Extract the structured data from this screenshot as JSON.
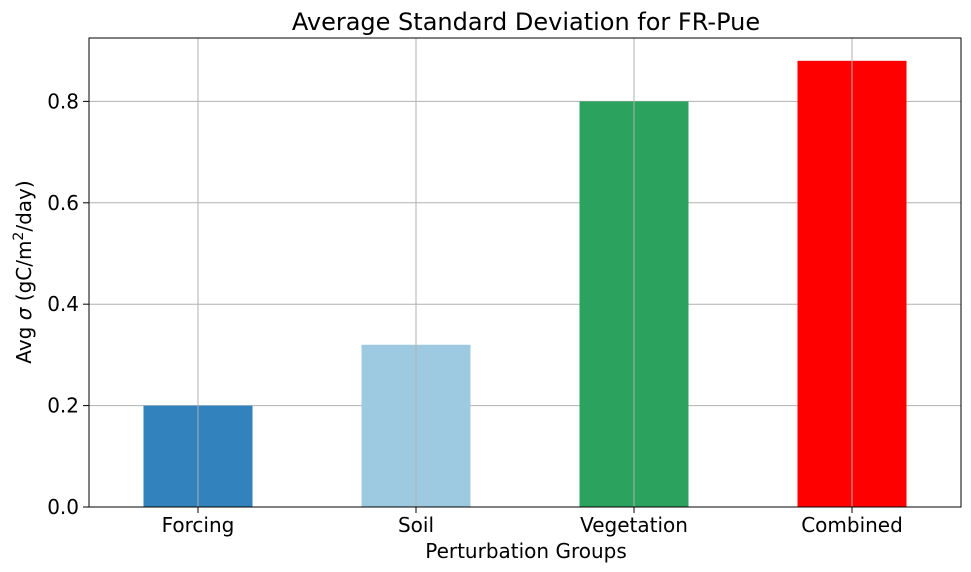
{
  "chart_data": {
    "type": "bar",
    "title": "Average Standard Deviation for FR-Pue",
    "xlabel": "Perturbation Groups",
    "ylabel_parts": {
      "prefix": "Avg ",
      "symbol": "σ",
      "unit_start": " (gC/m",
      "superscript": "2",
      "unit_end": "/day)"
    },
    "categories": [
      "Forcing",
      "Soil",
      "Vegetation",
      "Combined"
    ],
    "values": [
      0.2,
      0.32,
      0.8,
      0.88
    ],
    "colors": [
      "#3182bd",
      "#9ecae1",
      "#2ca25f",
      "#ff0000"
    ],
    "ylim": [
      0,
      0.925
    ],
    "yticks": [
      0.0,
      0.2,
      0.4,
      0.6,
      0.8
    ],
    "ytick_labels": [
      "0.0",
      "0.2",
      "0.4",
      "0.6",
      "0.8"
    ],
    "grid": true,
    "grid_color": "#b0b0b0"
  }
}
